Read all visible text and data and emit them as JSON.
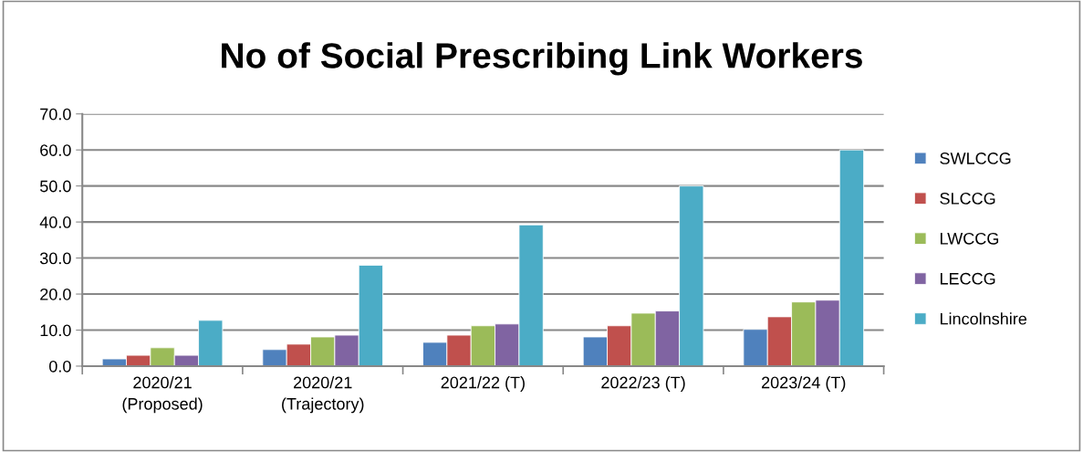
{
  "chart_data": {
    "type": "bar",
    "title": "No of Social Prescribing Link Workers",
    "categories": [
      "2020/21\n(Proposed)",
      "2020/21\n(Trajectory)",
      "2021/22 (T)",
      "2022/23 (T)",
      "2023/24 (T)"
    ],
    "series": [
      {
        "name": "SWLCCG",
        "color": "#4f81bd",
        "values": [
          2.0,
          4.6,
          6.6,
          8.1,
          10.2
        ]
      },
      {
        "name": "SLCCG",
        "color": "#c0504d",
        "values": [
          3.0,
          6.1,
          8.6,
          11.2,
          13.7
        ]
      },
      {
        "name": "LWCCG",
        "color": "#9bbb59",
        "values": [
          5.1,
          8.1,
          11.2,
          14.7,
          17.8
        ]
      },
      {
        "name": "LECCG",
        "color": "#8064a2",
        "values": [
          3.0,
          8.6,
          11.7,
          15.3,
          18.3
        ]
      },
      {
        "name": "Lincolnshire",
        "color": "#4bacc6",
        "values": [
          12.7,
          28.0,
          39.2,
          50.0,
          60.0
        ]
      }
    ],
    "ylim": [
      0,
      70
    ],
    "yticks": [
      {
        "value": 0,
        "label": "0.0"
      },
      {
        "value": 10,
        "label": "10.0"
      },
      {
        "value": 20,
        "label": "20.0"
      },
      {
        "value": 30,
        "label": "30.0"
      },
      {
        "value": 40,
        "label": "40.0"
      },
      {
        "value": 50,
        "label": "50.0"
      },
      {
        "value": 60,
        "label": "60.0"
      },
      {
        "value": 70,
        "label": "70.0"
      }
    ],
    "grid": "y",
    "legend": "right"
  }
}
